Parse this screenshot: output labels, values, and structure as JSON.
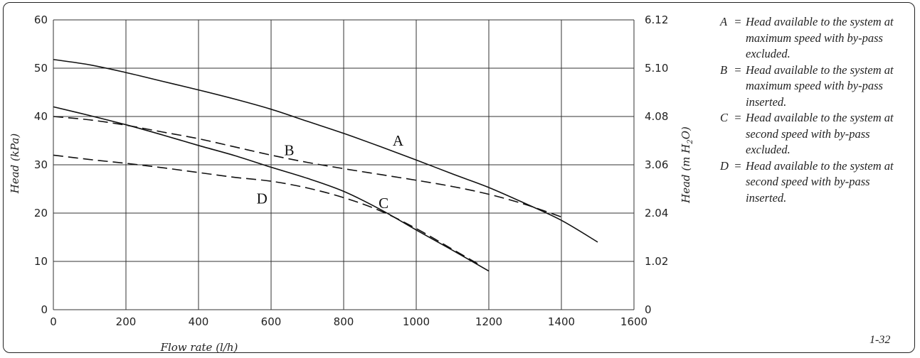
{
  "chart_data": {
    "type": "line",
    "xlabel": "Flow rate (l/h)",
    "ylabel": "Head (kPa)",
    "y2label": "Head (m H2O)",
    "xlim": [
      0,
      1600
    ],
    "ylim": [
      0,
      60
    ],
    "y2lim": [
      0,
      6.12
    ],
    "x_ticks": [
      "0",
      "200",
      "400",
      "600",
      "800",
      "1000",
      "1200",
      "1400",
      "1600"
    ],
    "y_ticks": [
      "0",
      "10",
      "20",
      "30",
      "40",
      "50",
      "60"
    ],
    "y2_ticks": [
      "0",
      "1.02",
      "2.04",
      "3.06",
      "4.08",
      "5.10",
      "6.12"
    ],
    "grid": true,
    "series": [
      {
        "name": "A",
        "style": "solid",
        "color": "#111111",
        "x": [
          0,
          100,
          200,
          300,
          400,
          500,
          600,
          700,
          800,
          900,
          1000,
          1100,
          1200,
          1300,
          1400,
          1500
        ],
        "y": [
          51.8,
          50.7,
          49.1,
          47.3,
          45.5,
          43.6,
          41.5,
          39.0,
          36.5,
          33.8,
          31.0,
          28.1,
          25.3,
          22.0,
          18.5,
          14.0
        ],
        "label_at": [
          950,
          34
        ]
      },
      {
        "name": "B",
        "style": "dashed",
        "color": "#111111",
        "x": [
          0,
          100,
          200,
          300,
          400,
          500,
          600,
          700,
          800,
          900,
          1000,
          1100,
          1200,
          1300,
          1400
        ],
        "y": [
          40.0,
          39.3,
          38.2,
          36.8,
          35.4,
          33.7,
          32.0,
          30.5,
          29.2,
          28.0,
          26.8,
          25.5,
          23.9,
          21.8,
          19.2
        ],
        "label_at": [
          650,
          32
        ]
      },
      {
        "name": "C",
        "style": "solid",
        "color": "#111111",
        "x": [
          0,
          100,
          200,
          300,
          400,
          500,
          600,
          700,
          800,
          900,
          1000,
          1100,
          1200
        ],
        "y": [
          42.0,
          40.2,
          38.3,
          36.2,
          34.0,
          31.9,
          29.5,
          27.2,
          24.5,
          20.8,
          16.5,
          12.3,
          8.0
        ],
        "label_at": [
          910,
          21
        ]
      },
      {
        "name": "D",
        "style": "dashed",
        "color": "#111111",
        "x": [
          0,
          100,
          200,
          300,
          400,
          500,
          600,
          700,
          800,
          900,
          1000,
          1100,
          1170
        ],
        "y": [
          32.0,
          31.1,
          30.3,
          29.4,
          28.4,
          27.4,
          26.6,
          25.2,
          23.2,
          20.5,
          16.8,
          12.5,
          9.5
        ],
        "label_at": [
          575,
          22
        ]
      }
    ]
  },
  "legend": {
    "equals": "=",
    "items": [
      {
        "key": "A",
        "text": "Head available to the system at maximum speed with by-pass excluded."
      },
      {
        "key": "B",
        "text": "Head available to the system at maximum speed with by-pass inserted."
      },
      {
        "key": "C",
        "text": "Head available to the system at second speed with by-pass excluded."
      },
      {
        "key": "D",
        "text": "Head available to the system at second speed with by-pass inserted."
      }
    ]
  },
  "figure_id": "1-32"
}
